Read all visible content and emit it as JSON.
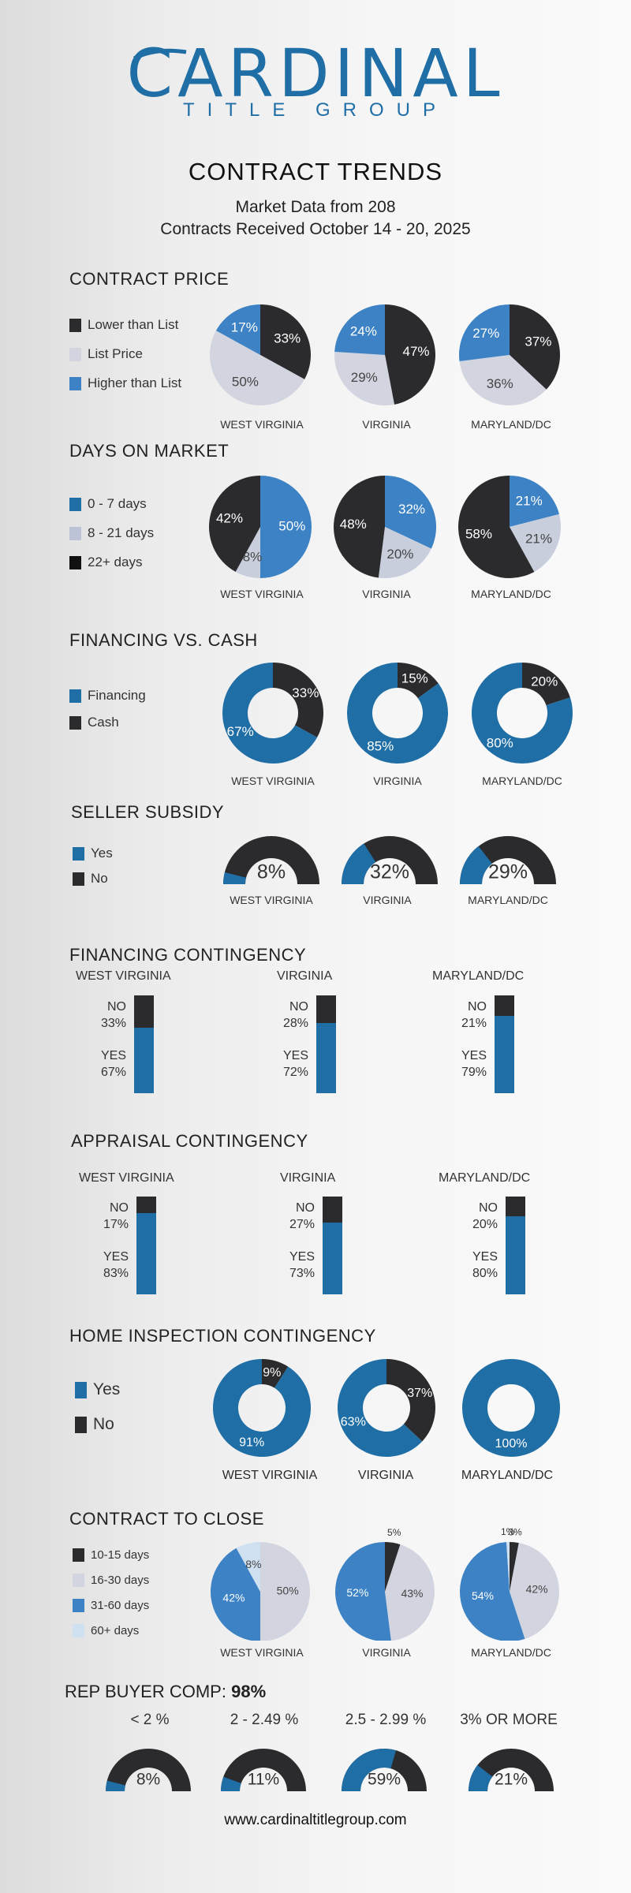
{
  "brand": {
    "name": "CARDINAL",
    "sub": "TITLE GROUP"
  },
  "header": {
    "title": "CONTRACT TRENDS",
    "line1": "Market Data from 208",
    "line2": "Contracts Received October 14 - 20, 2025"
  },
  "colors": {
    "dark": "#2b2b2e",
    "light": "#d2d5e0",
    "blue": "#3c82c4",
    "navy": "#1f6ea6",
    "pale": "#cfe0f0",
    "black": "#111111"
  },
  "regions": [
    "WEST VIRGINIA",
    "VIRGINIA",
    "MARYLAND/DC"
  ],
  "footer": "www.cardinaltitlegroup.com",
  "chart_data": [
    {
      "id": "contract-price",
      "type": "pie",
      "title": "CONTRACT PRICE",
      "legend": [
        "Lower than List",
        "List Price",
        "Higher than List"
      ],
      "categories": [
        "WEST VIRGINIA",
        "VIRGINIA",
        "MARYLAND/DC"
      ],
      "series": [
        {
          "name": "Lower than List",
          "values": [
            33,
            47,
            37
          ]
        },
        {
          "name": "List Price",
          "values": [
            50,
            29,
            36
          ]
        },
        {
          "name": "Higher than List",
          "values": [
            17,
            24,
            27
          ]
        }
      ],
      "labels": [
        [
          "33%",
          "50%",
          "17%"
        ],
        [
          "47%",
          "29%",
          "24%"
        ],
        [
          "37%",
          "36%",
          "27%"
        ]
      ]
    },
    {
      "id": "days-on-market",
      "type": "pie",
      "title": "DAYS ON MARKET",
      "legend": [
        "0 - 7 days",
        "8 - 21 days",
        "22+ days"
      ],
      "categories": [
        "WEST VIRGINIA",
        "VIRGINIA",
        "MARYLAND/DC"
      ],
      "series": [
        {
          "name": "0 - 7 days",
          "values": [
            50,
            32,
            21
          ]
        },
        {
          "name": "8 - 21 days",
          "values": [
            8,
            20,
            21
          ]
        },
        {
          "name": "22+ days",
          "values": [
            42,
            48,
            58
          ]
        }
      ],
      "labels": [
        [
          "50%",
          "8%",
          "42%"
        ],
        [
          "32%",
          "20%",
          "48%"
        ],
        [
          "21%",
          "21%",
          "58%"
        ]
      ]
    },
    {
      "id": "financing-vs-cash",
      "type": "pie",
      "title": "FINANCING VS. CASH",
      "legend": [
        "Financing",
        "Cash"
      ],
      "categories": [
        "WEST VIRGINIA",
        "VIRGINIA",
        "MARYLAND/DC"
      ],
      "series": [
        {
          "name": "Cash",
          "values": [
            33,
            15,
            20
          ]
        },
        {
          "name": "Financing",
          "values": [
            67,
            85,
            80
          ]
        }
      ],
      "labels": [
        [
          "33%",
          "67%"
        ],
        [
          "15%",
          "85%"
        ],
        [
          "20%",
          "80%"
        ]
      ]
    },
    {
      "id": "seller-subsidy",
      "type": "pie",
      "title": "SELLER SUBSIDY",
      "legend": [
        "Yes",
        "No"
      ],
      "categories": [
        "WEST VIRGINIA",
        "VIRGINIA",
        "MARYLAND/DC"
      ],
      "series": [
        {
          "name": "Yes",
          "values": [
            8,
            32,
            29
          ]
        }
      ],
      "labels": [
        "8%",
        "32%",
        "29%"
      ]
    },
    {
      "id": "financing-contingency",
      "type": "bar",
      "title": "FINANCING CONTINGENCY",
      "categories": [
        "WEST VIRGINIA",
        "VIRGINIA",
        "MARYLAND/DC"
      ],
      "no_label": "NO",
      "yes_label": "YES",
      "series": [
        {
          "name": "NO",
          "values": [
            33,
            28,
            21
          ],
          "labels": [
            "33%",
            "28%",
            "21%"
          ]
        },
        {
          "name": "YES",
          "values": [
            67,
            72,
            79
          ],
          "labels": [
            "67%",
            "72%",
            "79%"
          ]
        }
      ]
    },
    {
      "id": "appraisal-contingency",
      "type": "bar",
      "title": "APPRAISAL CONTINGENCY",
      "categories": [
        "WEST VIRGINIA",
        "VIRGINIA",
        "MARYLAND/DC"
      ],
      "no_label": "NO",
      "yes_label": "YES",
      "series": [
        {
          "name": "NO",
          "values": [
            17,
            27,
            20
          ],
          "labels": [
            "17%",
            "27%",
            "20%"
          ]
        },
        {
          "name": "YES",
          "values": [
            83,
            73,
            80
          ],
          "labels": [
            "83%",
            "73%",
            "80%"
          ]
        }
      ]
    },
    {
      "id": "home-inspection",
      "type": "pie",
      "title": "HOME INSPECTION CONTINGENCY",
      "legend": [
        "Yes",
        "No"
      ],
      "categories": [
        "WEST VIRGINIA",
        "VIRGINIA",
        "MARYLAND/DC"
      ],
      "series": [
        {
          "name": "No",
          "values": [
            9,
            37,
            0
          ]
        },
        {
          "name": "Yes",
          "values": [
            91,
            63,
            100
          ]
        }
      ],
      "labels": [
        [
          "9%",
          "91%"
        ],
        [
          "37%",
          "63%"
        ],
        [
          "",
          "100%"
        ]
      ]
    },
    {
      "id": "contract-to-close",
      "type": "pie",
      "title": "CONTRACT TO CLOSE",
      "legend": [
        "10-15 days",
        "16-30 days",
        "31-60 days",
        "60+ days"
      ],
      "categories": [
        "WEST VIRGINIA",
        "VIRGINIA",
        "MARYLAND/DC"
      ],
      "series": [
        {
          "name": "10-15 days",
          "values": [
            0,
            5,
            3
          ]
        },
        {
          "name": "16-30 days",
          "values": [
            50,
            43,
            42
          ]
        },
        {
          "name": "31-60 days",
          "values": [
            42,
            52,
            54
          ]
        },
        {
          "name": "60+ days",
          "values": [
            8,
            0,
            1
          ]
        }
      ],
      "labels": [
        [
          "",
          "50%",
          "42%",
          "8%"
        ],
        [
          "5%",
          "43%",
          "52%",
          ""
        ],
        [
          "3%",
          "42%",
          "54%",
          "1%"
        ]
      ]
    },
    {
      "id": "rep-buyer-comp",
      "type": "pie",
      "title": "REP BUYER COMP:",
      "total": "98%",
      "categories": [
        "< 2 %",
        "2 - 2.49 %",
        "2.5 - 2.99 %",
        "3% OR MORE"
      ],
      "series": [
        {
          "name": "share",
          "values": [
            8,
            11,
            59,
            21
          ]
        }
      ],
      "labels": [
        "8%",
        "11%",
        "59%",
        "21%"
      ]
    }
  ]
}
